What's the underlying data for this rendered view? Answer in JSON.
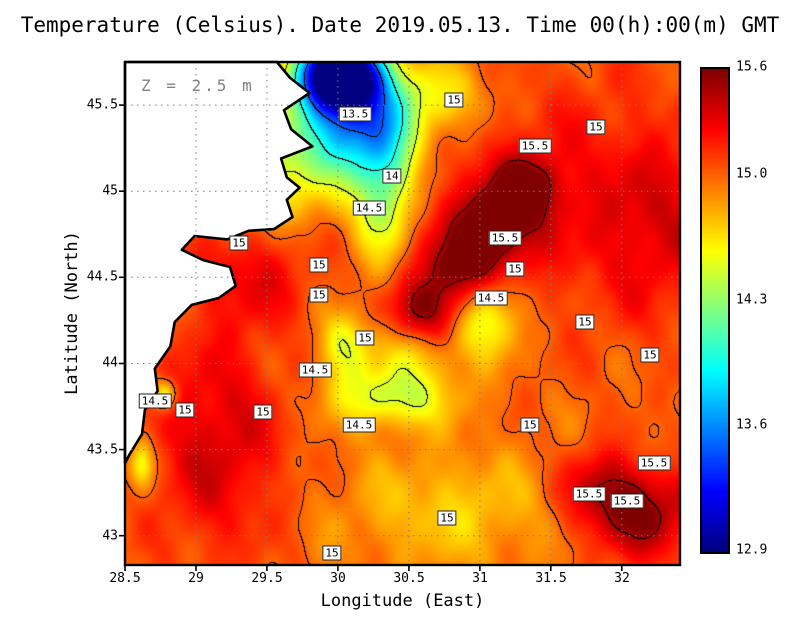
{
  "chart_data": {
    "type": "heatmap",
    "title": "Temperature (Celsius). Date 2019.05.13. Time 00(h):00(m) GMT",
    "annotation": "Z = 2.5 m",
    "xlabel": "Longitude (East)",
    "ylabel": "Latitude (North)",
    "xlim": [
      28.5,
      32.41
    ],
    "ylim": [
      42.83,
      45.75
    ],
    "zlim": [
      12.9,
      15.6
    ],
    "xticks": [
      28.5,
      29,
      29.5,
      30,
      30.5,
      31,
      31.5,
      32
    ],
    "yticks": [
      43,
      43.5,
      44,
      44.5,
      45,
      45.5
    ],
    "colorbar_ticks": [
      {
        "label": "15.6",
        "value": 15.6
      },
      {
        "label": "15.0",
        "value": 15.0
      },
      {
        "label": "14.3",
        "value": 14.3
      },
      {
        "label": "13.6",
        "value": 13.6
      },
      {
        "label": "12.9",
        "value": 12.9
      }
    ],
    "colormap": "jet",
    "grid": true,
    "contour_levels": [
      13.5,
      14,
      14.5,
      15,
      15.5
    ],
    "base_value": 15.0,
    "features": [
      {
        "x": 30.02,
        "y": 45.68,
        "amp": -2.6,
        "sx": 0.2,
        "sy": 0.14
      },
      {
        "x": 30.15,
        "y": 45.42,
        "amp": -1.05,
        "sx": 0.28,
        "sy": 0.2
      },
      {
        "x": 30.32,
        "y": 45.0,
        "amp": -0.75,
        "sx": 0.14,
        "sy": 0.28
      },
      {
        "x": 29.95,
        "y": 45.25,
        "amp": -0.4,
        "sx": 0.35,
        "sy": 0.22
      },
      {
        "x": 29.5,
        "y": 45.1,
        "amp": -0.3,
        "sx": 0.3,
        "sy": 0.3
      },
      {
        "x": 30.75,
        "y": 45.55,
        "amp": -0.35,
        "sx": 0.25,
        "sy": 0.15
      },
      {
        "x": 31.6,
        "y": 45.0,
        "amp": 0.22,
        "sx": 0.9,
        "sy": 0.5
      },
      {
        "x": 30.62,
        "y": 44.3,
        "amp": 0.5,
        "sx": 0.18,
        "sy": 0.13
      },
      {
        "x": 30.88,
        "y": 44.55,
        "amp": 0.58,
        "sx": 0.2,
        "sy": 0.15
      },
      {
        "x": 31.1,
        "y": 44.8,
        "amp": 0.58,
        "sx": 0.2,
        "sy": 0.15
      },
      {
        "x": 31.32,
        "y": 45.02,
        "amp": 0.5,
        "sx": 0.18,
        "sy": 0.13
      },
      {
        "x": 29.4,
        "y": 44.55,
        "amp": 0.32,
        "sx": 0.28,
        "sy": 0.22
      },
      {
        "x": 29.15,
        "y": 43.55,
        "amp": 0.38,
        "sx": 0.33,
        "sy": 0.45
      },
      {
        "x": 30.05,
        "y": 44.1,
        "amp": -0.5,
        "sx": 0.12,
        "sy": 0.14
      },
      {
        "x": 30.38,
        "y": 43.8,
        "amp": -0.55,
        "sx": 0.3,
        "sy": 0.12
      },
      {
        "x": 30.55,
        "y": 44.05,
        "amp": -0.3,
        "sx": 0.22,
        "sy": 0.13
      },
      {
        "x": 31.05,
        "y": 44.28,
        "amp": -0.6,
        "sx": 0.16,
        "sy": 0.17
      },
      {
        "x": 28.78,
        "y": 43.82,
        "amp": -0.55,
        "sx": 0.06,
        "sy": 0.06
      },
      {
        "x": 28.62,
        "y": 43.42,
        "amp": -0.5,
        "sx": 0.06,
        "sy": 0.1
      },
      {
        "x": 32.15,
        "y": 43.12,
        "amp": 0.55,
        "sx": 0.3,
        "sy": 0.18
      },
      {
        "x": 31.85,
        "y": 43.3,
        "amp": 0.35,
        "sx": 0.2,
        "sy": 0.15
      },
      {
        "x": 32.25,
        "y": 44.75,
        "amp": 0.22,
        "sx": 0.3,
        "sy": 0.35
      },
      {
        "x": 30.8,
        "y": 43.15,
        "amp": -0.28,
        "sx": 0.55,
        "sy": 0.25
      }
    ],
    "contour_labels": [
      {
        "v": "13.5",
        "lon": 30.12,
        "lat": 45.45
      },
      {
        "v": "15",
        "lon": 30.82,
        "lat": 45.53
      },
      {
        "v": "15",
        "lon": 31.82,
        "lat": 45.37
      },
      {
        "v": "15.5",
        "lon": 31.39,
        "lat": 45.26
      },
      {
        "v": "14",
        "lon": 30.38,
        "lat": 45.09
      },
      {
        "v": "14.5",
        "lon": 30.22,
        "lat": 44.9
      },
      {
        "v": "15.5",
        "lon": 31.18,
        "lat": 44.73
      },
      {
        "v": "15",
        "lon": 29.3,
        "lat": 44.7
      },
      {
        "v": "15",
        "lon": 29.87,
        "lat": 44.57
      },
      {
        "v": "15",
        "lon": 31.25,
        "lat": 44.55
      },
      {
        "v": "15",
        "lon": 29.87,
        "lat": 44.4
      },
      {
        "v": "14.5",
        "lon": 31.08,
        "lat": 44.38
      },
      {
        "v": "15",
        "lon": 31.74,
        "lat": 44.24
      },
      {
        "v": "15",
        "lon": 30.19,
        "lat": 44.15
      },
      {
        "v": "15",
        "lon": 32.2,
        "lat": 44.05
      },
      {
        "v": "14.5",
        "lon": 29.84,
        "lat": 43.96
      },
      {
        "v": "14.5",
        "lon": 28.71,
        "lat": 43.78
      },
      {
        "v": "15",
        "lon": 28.92,
        "lat": 43.73
      },
      {
        "v": "15",
        "lon": 29.47,
        "lat": 43.72
      },
      {
        "v": "14.5",
        "lon": 30.15,
        "lat": 43.64
      },
      {
        "v": "15",
        "lon": 31.35,
        "lat": 43.64
      },
      {
        "v": "15.5",
        "lon": 32.23,
        "lat": 43.42
      },
      {
        "v": "15.5",
        "lon": 31.77,
        "lat": 43.24
      },
      {
        "v": "15.5",
        "lon": 32.04,
        "lat": 43.2
      },
      {
        "v": "15",
        "lon": 30.77,
        "lat": 43.1
      },
      {
        "v": "15",
        "lon": 29.96,
        "lat": 42.9
      }
    ],
    "coastline": [
      [
        29.57,
        45.75
      ],
      [
        29.66,
        45.66
      ],
      [
        29.8,
        45.57
      ],
      [
        29.62,
        45.47
      ],
      [
        29.67,
        45.36
      ],
      [
        29.82,
        45.26
      ],
      [
        29.6,
        45.19
      ],
      [
        29.64,
        45.08
      ],
      [
        29.73,
        45.02
      ],
      [
        29.64,
        44.95
      ],
      [
        29.68,
        44.85
      ],
      [
        29.55,
        44.78
      ],
      [
        29.37,
        44.77
      ],
      [
        29.22,
        44.72
      ],
      [
        28.99,
        44.74
      ],
      [
        28.9,
        44.66
      ],
      [
        29.05,
        44.6
      ],
      [
        29.24,
        44.56
      ],
      [
        29.28,
        44.45
      ],
      [
        29.16,
        44.38
      ],
      [
        28.97,
        44.34
      ],
      [
        28.85,
        44.24
      ],
      [
        28.82,
        44.1
      ],
      [
        28.71,
        43.97
      ],
      [
        28.73,
        43.84
      ],
      [
        28.64,
        43.73
      ],
      [
        28.62,
        43.59
      ],
      [
        28.53,
        43.47
      ],
      [
        28.5,
        43.42
      ],
      [
        28.5,
        45.75
      ]
    ]
  }
}
